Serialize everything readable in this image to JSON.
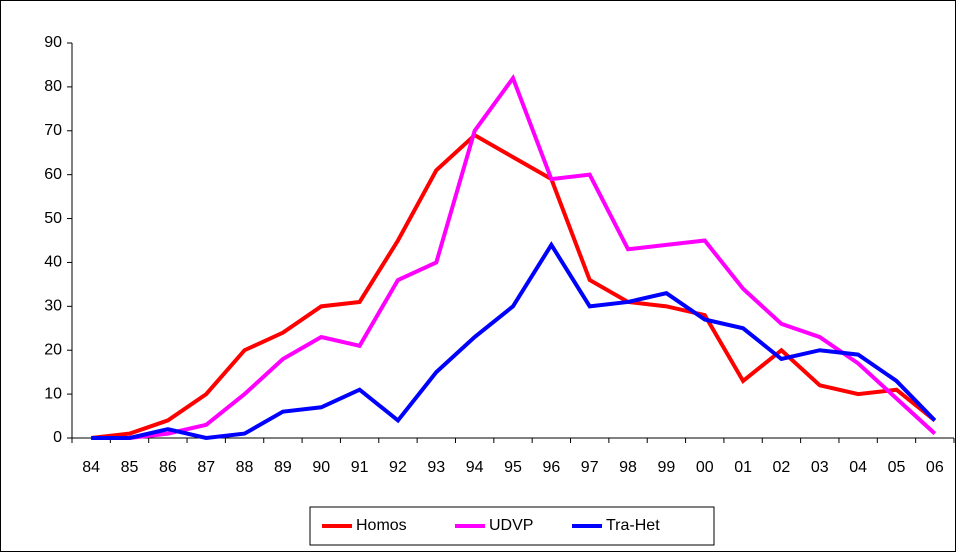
{
  "chart_data": {
    "type": "line",
    "categories": [
      "84",
      "85",
      "86",
      "87",
      "88",
      "89",
      "90",
      "91",
      "92",
      "93",
      "94",
      "95",
      "96",
      "97",
      "98",
      "99",
      "00",
      "01",
      "02",
      "03",
      "04",
      "05",
      "06"
    ],
    "series": [
      {
        "name": "Homos",
        "color": "#ff0000",
        "values": [
          0,
          1,
          4,
          10,
          20,
          24,
          30,
          31,
          45,
          61,
          69,
          64,
          59,
          36,
          31,
          30,
          28,
          13,
          20,
          12,
          10,
          11,
          4
        ]
      },
      {
        "name": "UDVP",
        "color": "#ff00ff",
        "values": [
          0,
          0,
          1,
          3,
          10,
          18,
          23,
          21,
          36,
          40,
          70,
          82,
          59,
          60,
          43,
          44,
          45,
          34,
          26,
          23,
          17,
          9,
          1
        ]
      },
      {
        "name": "Tra-Het",
        "color": "#0000ff",
        "values": [
          0,
          0,
          2,
          0,
          1,
          6,
          7,
          11,
          4,
          15,
          23,
          30,
          44,
          30,
          31,
          33,
          27,
          25,
          18,
          20,
          19,
          13,
          4
        ]
      }
    ],
    "ylim": [
      0,
      90
    ],
    "yticks": [
      0,
      10,
      20,
      30,
      40,
      50,
      60,
      70,
      80,
      90
    ],
    "legend": "bottom"
  }
}
